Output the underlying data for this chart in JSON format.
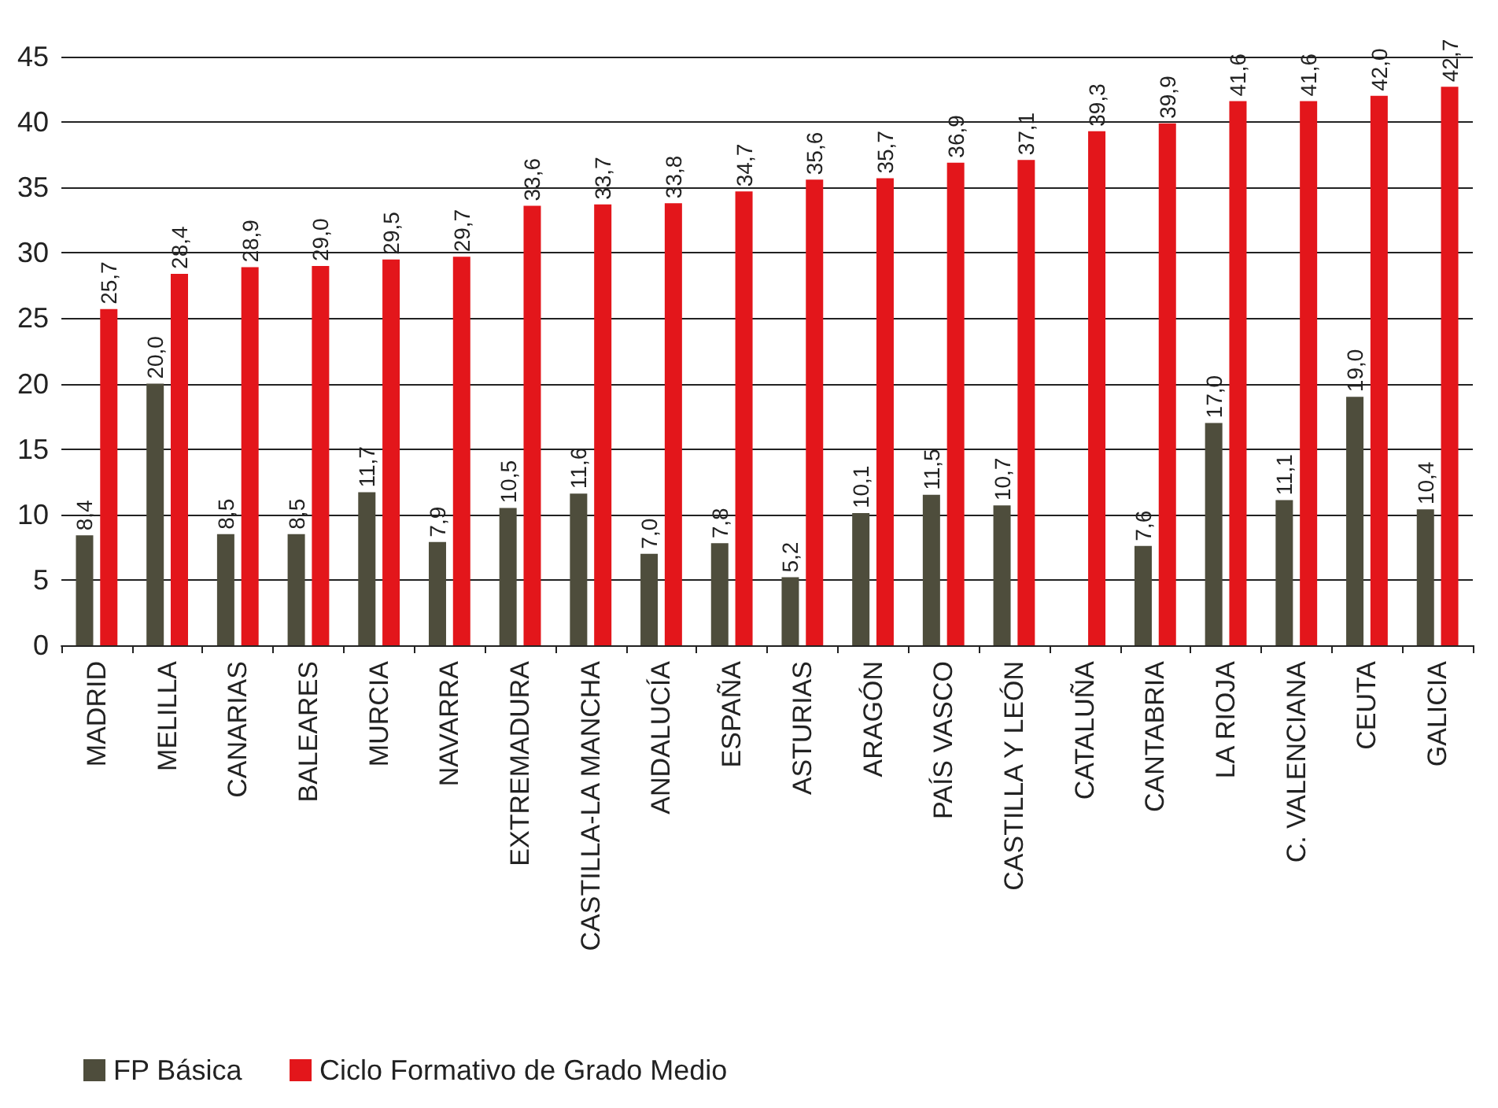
{
  "chart_data": {
    "type": "bar",
    "categories": [
      "MADRID",
      "MELILLA",
      "CANARIAS",
      "BALEARES",
      "MURCIA",
      "NAVARRA",
      "EXTREMADURA",
      "CASTILLA-LA MANCHA",
      "ANDALUCÍA",
      "ESPAÑA",
      "ASTURIAS",
      "ARAGÓN",
      "PAÍS VASCO",
      "CASTILLA Y LEÓN",
      "CATALUÑA",
      "CANTABRIA",
      "LA RIOJA",
      "C. VALENCIANA",
      "CEUTA",
      "GALICIA"
    ],
    "series": [
      {
        "name": "FP Básica",
        "color": "#4e4d3c",
        "values": [
          8.4,
          20.0,
          8.5,
          8.5,
          11.7,
          7.9,
          10.5,
          11.6,
          7.0,
          7.8,
          5.2,
          10.1,
          11.5,
          10.7,
          null,
          7.6,
          17.0,
          11.1,
          19.0,
          10.4
        ],
        "value_labels": [
          "8,4",
          "20,0",
          "8,5",
          "8,5",
          "11,7",
          "7,9",
          "10,5",
          "11,6",
          "7,0",
          "7,8",
          "5,2",
          "10,1",
          "11,5",
          "10,7",
          null,
          "7,6",
          "17,0",
          "11,1",
          "19,0",
          "10,4"
        ]
      },
      {
        "name": "Ciclo Formativo de Grado Medio",
        "color": "#e3161b",
        "values": [
          25.7,
          28.4,
          28.9,
          29.0,
          29.5,
          29.7,
          33.6,
          33.7,
          33.8,
          34.7,
          35.6,
          35.7,
          36.9,
          37.1,
          39.3,
          39.9,
          41.6,
          41.6,
          42.0,
          42.7
        ],
        "value_labels": [
          "25,7",
          "28,4",
          "28,9",
          "29,0",
          "29,5",
          "29,7",
          "33,6",
          "33,7",
          "33,8",
          "34,7",
          "35,6",
          "35,7",
          "36,9",
          "37,1",
          "39,3",
          "39,9",
          "41,6",
          "41,6",
          "42,0",
          "42,7"
        ]
      }
    ],
    "ylim": [
      0,
      45
    ],
    "yticks": [
      0,
      5,
      10,
      15,
      20,
      25,
      30,
      35,
      40,
      45
    ],
    "grid": "y",
    "legend": "bottom left"
  }
}
